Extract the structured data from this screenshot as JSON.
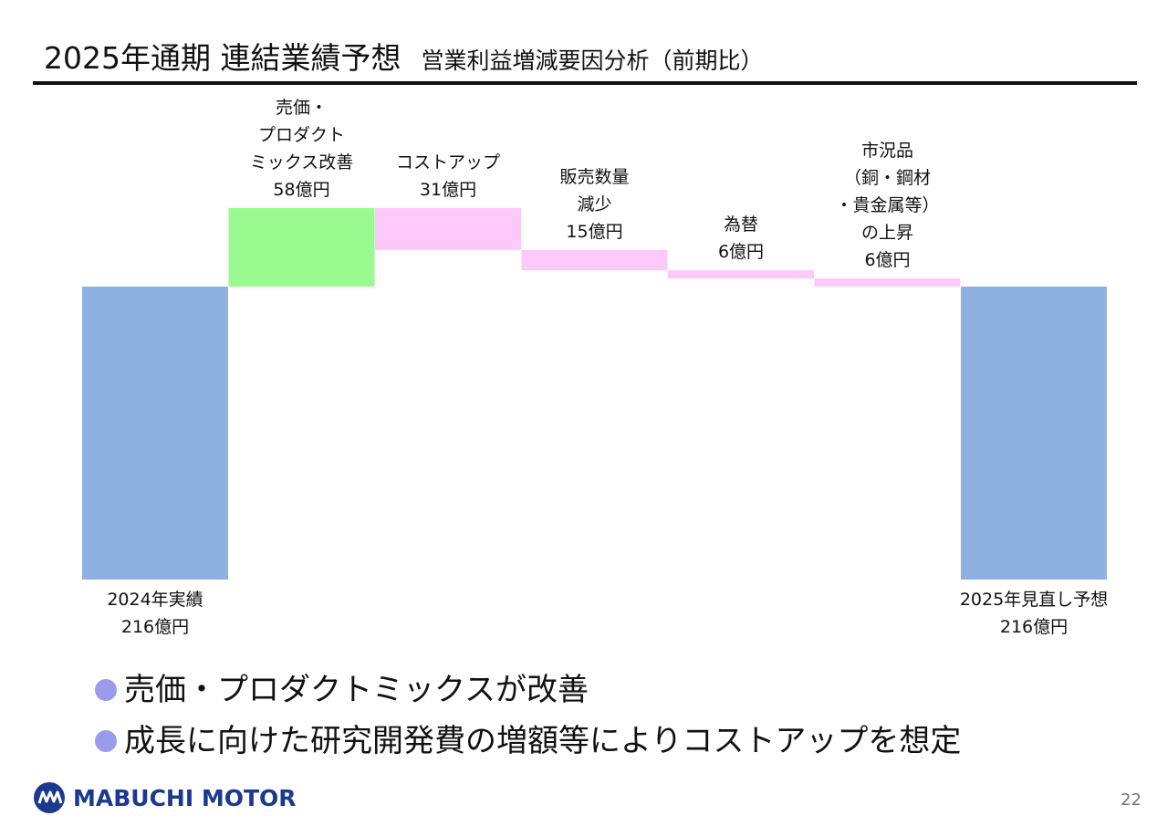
{
  "header": {
    "title": "2025年通期 連結業績予想",
    "subtitle": "営業利益増減要因分析（前期比）"
  },
  "chart_data": {
    "type": "waterfall",
    "unit": "億円",
    "steps": [
      {
        "label_lines": [
          "2024年実績",
          "216億円"
        ],
        "kind": "total",
        "value": 216,
        "color": "#8eb1e1",
        "label_position": "below"
      },
      {
        "label_lines": [
          "売価・",
          "プロダクト",
          "ミックス改善",
          "58億円"
        ],
        "kind": "increase",
        "value": 58,
        "color": "#99fa8f",
        "label_position": "above"
      },
      {
        "label_lines": [
          "コストアップ",
          "31億円"
        ],
        "kind": "decrease",
        "value": 31,
        "color": "#fdc9fb",
        "label_position": "above"
      },
      {
        "label_lines": [
          "販売数量",
          "減少",
          "15億円"
        ],
        "kind": "decrease",
        "value": 15,
        "color": "#fdc9fb",
        "label_position": "above"
      },
      {
        "label_lines": [
          "為替",
          "6億円"
        ],
        "kind": "decrease",
        "value": 6,
        "color": "#fdc9fb",
        "label_position": "above"
      },
      {
        "label_lines": [
          "市況品",
          "（銅・鋼材",
          "・貴金属等）",
          "の上昇",
          "6億円"
        ],
        "kind": "decrease",
        "value": 6,
        "color": "#fdc9fb",
        "label_position": "above"
      },
      {
        "label_lines": [
          "2025年見直し予想",
          "216億円"
        ],
        "kind": "total",
        "value": 216,
        "color": "#8eb1e1",
        "label_position": "below"
      }
    ]
  },
  "bullets": [
    "売価・プロダクトミックスが改善",
    "成長に向けた研究開発費の増額等によりコストアップを想定"
  ],
  "footer": {
    "logo_text": "MABUCHI MOTOR",
    "logo_icon": "mabuchi-logo-icon",
    "page_number": "22"
  },
  "colors": {
    "total": "#8eb1e1",
    "increase": "#99fa8f",
    "decrease": "#fdc9fb",
    "bullet": "#9b9bec",
    "brand": "#1b3a8f"
  }
}
